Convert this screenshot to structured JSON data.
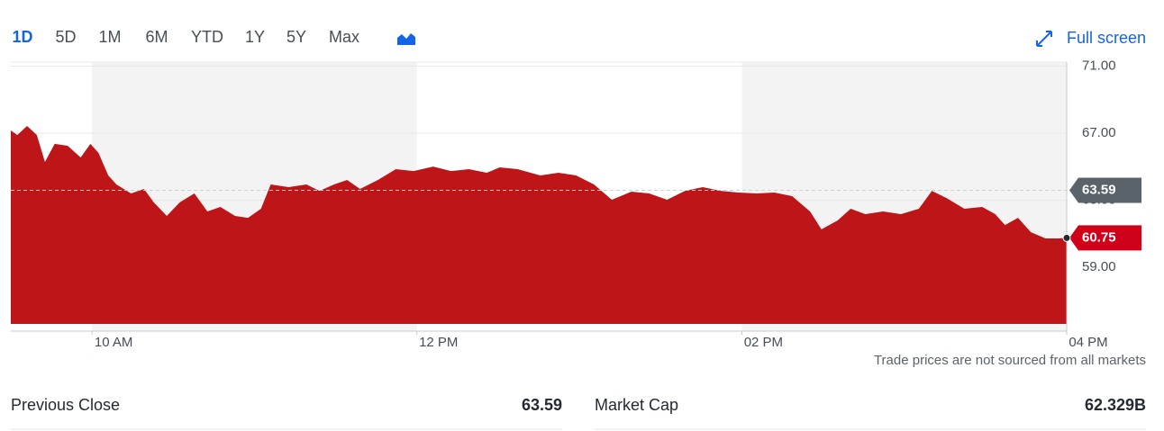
{
  "toolbar": {
    "ranges": [
      "1D",
      "5D",
      "1M",
      "6M",
      "YTD",
      "1Y",
      "5Y",
      "Max"
    ],
    "fullscreen": "Full screen"
  },
  "chart_data": {
    "type": "area",
    "color": "#be1518",
    "x": [
      9.5,
      9.54,
      9.6,
      9.66,
      9.71,
      9.77,
      9.85,
      9.93,
      9.99,
      10.04,
      10.1,
      10.15,
      10.24,
      10.32,
      10.38,
      10.46,
      10.54,
      10.63,
      10.71,
      10.79,
      10.88,
      10.96,
      11.04,
      11.1,
      11.21,
      11.32,
      11.4,
      11.49,
      11.57,
      11.65,
      11.76,
      11.87,
      11.98,
      12.1,
      12.21,
      12.32,
      12.43,
      12.51,
      12.62,
      12.76,
      12.87,
      12.98,
      13.09,
      13.2,
      13.32,
      13.43,
      13.54,
      13.65,
      13.76,
      13.87,
      13.98,
      14.09,
      14.2,
      14.31,
      14.42,
      14.49,
      14.59,
      14.67,
      14.76,
      14.87,
      14.98,
      15.09,
      15.17,
      15.26,
      15.37,
      15.48,
      15.56,
      15.62,
      15.7,
      15.78,
      15.87,
      15.95,
      16.0
    ],
    "values": [
      67.16,
      66.89,
      67.43,
      66.89,
      65.28,
      66.36,
      66.25,
      65.55,
      66.36,
      65.82,
      64.48,
      63.94,
      63.4,
      63.67,
      62.87,
      62.06,
      62.87,
      63.4,
      62.33,
      62.6,
      62.06,
      61.95,
      62.49,
      63.94,
      63.78,
      63.94,
      63.56,
      63.94,
      64.21,
      63.67,
      64.21,
      64.85,
      64.74,
      65.01,
      64.74,
      64.85,
      64.64,
      64.96,
      64.85,
      64.48,
      64.64,
      64.48,
      63.94,
      63.03,
      63.51,
      63.4,
      63.03,
      63.56,
      63.78,
      63.56,
      63.46,
      63.4,
      63.46,
      63.24,
      62.33,
      61.26,
      61.79,
      62.49,
      62.17,
      62.33,
      62.17,
      62.49,
      63.56,
      63.13,
      62.49,
      62.6,
      62.17,
      61.52,
      61.95,
      61.09,
      60.72,
      60.72,
      60.75
    ],
    "previous_close": 63.59,
    "xlim": [
      9.5,
      16
    ],
    "ylim": [
      55.62,
      71.24
    ],
    "xticks": [
      {
        "value": 10,
        "label": "10 AM"
      },
      {
        "value": 12,
        "label": "12 PM"
      },
      {
        "value": 14,
        "label": "02 PM"
      },
      {
        "value": 16,
        "label": "04 PM"
      }
    ],
    "yticks": [
      {
        "value": 59,
        "label": "59.00"
      },
      {
        "value": 63,
        "label": "63.00"
      },
      {
        "value": 67,
        "label": "67.00"
      },
      {
        "value": 71,
        "label": "71.00"
      }
    ],
    "grid": true,
    "note": "Trade prices are not sourced from all markets"
  },
  "stats": [
    {
      "label": "Previous Close",
      "value": "63.59"
    },
    {
      "label": "Market Cap",
      "value": "62.329B"
    }
  ]
}
